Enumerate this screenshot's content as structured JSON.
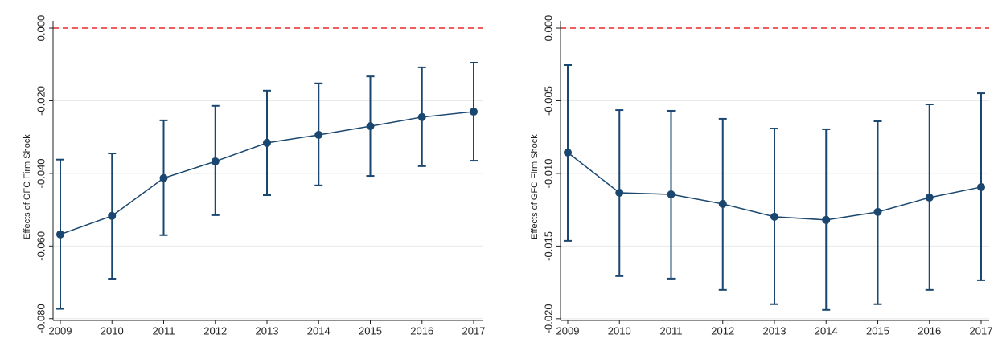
{
  "chart_data": [
    {
      "type": "line",
      "y_label": "Effects of GFC Firm Shock",
      "categories": [
        "2009",
        "2010",
        "2011",
        "2012",
        "2013",
        "2014",
        "2015",
        "2016",
        "2017"
      ],
      "series": [
        {
          "color": "#1a476f",
          "values": [
            -0.0568,
            -0.0517,
            -0.0413,
            -0.0367,
            -0.0316,
            -0.0294,
            -0.027,
            -0.0245,
            -0.023
          ],
          "ci_lower": [
            -0.0773,
            -0.069,
            -0.057,
            -0.0515,
            -0.046,
            -0.0433,
            -0.0407,
            -0.038,
            -0.0365
          ],
          "ci_upper": [
            -0.0362,
            -0.0345,
            -0.0254,
            -0.0214,
            -0.0172,
            -0.0152,
            -0.0133,
            -0.0108,
            -0.0095
          ]
        }
      ],
      "ylim": [
        -0.0805,
        0.002
      ],
      "yticks": [
        {
          "value": 0,
          "label": "0.000"
        },
        {
          "value": -0.02,
          "label": "-0.020"
        },
        {
          "value": -0.04,
          "label": "-0.040"
        },
        {
          "value": -0.06,
          "label": "-0.060"
        },
        {
          "value": -0.08,
          "label": "-0.080"
        }
      ],
      "grid": true,
      "reference_line": {
        "value": 0,
        "color": "#e8282b"
      }
    },
    {
      "type": "line",
      "y_label": "Effects of GFC Firm Shock",
      "categories": [
        "2009",
        "2010",
        "2011",
        "2012",
        "2013",
        "2014",
        "2015",
        "2016",
        "2017"
      ],
      "series": [
        {
          "color": "#1a476f",
          "values": [
            -0.00856,
            -0.01133,
            -0.01144,
            -0.0121,
            -0.01298,
            -0.0132,
            -0.01265,
            -0.01166,
            -0.01094
          ],
          "ci_lower": [
            -0.01464,
            -0.01707,
            -0.01724,
            -0.01801,
            -0.019,
            -0.01939,
            -0.019,
            -0.01801,
            -0.01735
          ],
          "ci_upper": [
            -0.00254,
            -0.00564,
            -0.00569,
            -0.00624,
            -0.00691,
            -0.00696,
            -0.00641,
            -0.00525,
            -0.00448
          ]
        }
      ],
      "ylim": [
        -0.02012,
        0.0005
      ],
      "yticks": [
        {
          "value": 0,
          "label": "0.000"
        },
        {
          "value": -0.005,
          "label": "-0.005"
        },
        {
          "value": -0.01,
          "label": "-0.010"
        },
        {
          "value": -0.015,
          "label": "-0.015"
        },
        {
          "value": -0.02,
          "label": "-0.020"
        }
      ],
      "grid": true,
      "reference_line": {
        "value": 0,
        "color": "#e8282b"
      }
    }
  ]
}
